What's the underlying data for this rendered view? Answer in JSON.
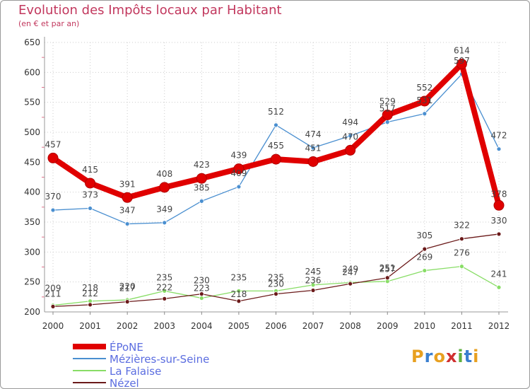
{
  "title": "Evolution des Impôts locaux par Habitant",
  "subtitle": "(en € et par an)",
  "logo": "Proxiti",
  "colors": {
    "title": "#c2385e",
    "axis_text": "#333333",
    "legend_text": "#5b6de0",
    "grid": "#cccccc",
    "minor_tick": "#e0708a"
  },
  "chart_data": {
    "type": "line",
    "x": [
      "2000",
      "2001",
      "2002",
      "2003",
      "2004",
      "2005",
      "2006",
      "2007",
      "2008",
      "2009",
      "2010",
      "2011",
      "2012"
    ],
    "ylim": [
      200,
      650
    ],
    "yticks": [
      200,
      250,
      300,
      350,
      400,
      450,
      500,
      550,
      600,
      650
    ],
    "grid": true,
    "legend_position": "bottom-left",
    "series": [
      {
        "name": "ÉPoNE",
        "color": "#e00000",
        "values": [
          457,
          415,
          391,
          408,
          423,
          439,
          455,
          451,
          470,
          529,
          552,
          614,
          378
        ],
        "labels": [
          "457",
          "415",
          "391",
          "408",
          "423",
          "439",
          "455",
          "451",
          "470",
          "529",
          "552",
          "614",
          "378"
        ],
        "label_offsets": [
          -15,
          -15,
          -15,
          -15,
          -15,
          -15,
          -15,
          -15,
          -15,
          -15,
          -15,
          -15,
          -12
        ]
      },
      {
        "name": "Mézières-sur-Seine",
        "color": "#4a8fd0",
        "values": [
          370,
          373,
          347,
          349,
          385,
          409,
          512,
          474,
          494,
          517,
          531,
          597,
          472
        ],
        "labels": [
          "370",
          "373",
          "347",
          "349",
          "385",
          "409",
          "512",
          "474",
          "494",
          "517",
          "531",
          "597",
          "472"
        ],
        "label_offsets": [
          -15,
          -15,
          -15,
          -15,
          -15,
          -15,
          -15,
          -15,
          -15,
          -15,
          -15,
          -15,
          -15
        ]
      },
      {
        "name": "La Falaise",
        "color": "#88dd66",
        "values": [
          211,
          218,
          220,
          235,
          223,
          235,
          235,
          245,
          249,
          251,
          269,
          276,
          241
        ],
        "labels": [
          "211",
          "218",
          "220",
          "235",
          "223",
          "235",
          "235",
          "245",
          "249",
          "251",
          "269",
          "276",
          "241"
        ],
        "label_offsets": [
          -12,
          -15,
          -15,
          -15,
          -10,
          -15,
          -15,
          -15,
          -15,
          -15,
          -15,
          -15,
          -15
        ]
      },
      {
        "name": "Nézel",
        "color": "#6b1a1a",
        "values": [
          209,
          212,
          217,
          222,
          230,
          218,
          230,
          236,
          247,
          257,
          305,
          322,
          330
        ],
        "labels": [
          "209",
          "212",
          "217",
          "222",
          "230",
          "218",
          "230",
          "236",
          "247",
          "257",
          "305",
          "322",
          "330"
        ],
        "label_offsets": [
          -22,
          -12,
          -15,
          -12,
          -15,
          -6,
          -10,
          -10,
          -12,
          -8,
          -15,
          -15,
          -15
        ]
      }
    ]
  }
}
